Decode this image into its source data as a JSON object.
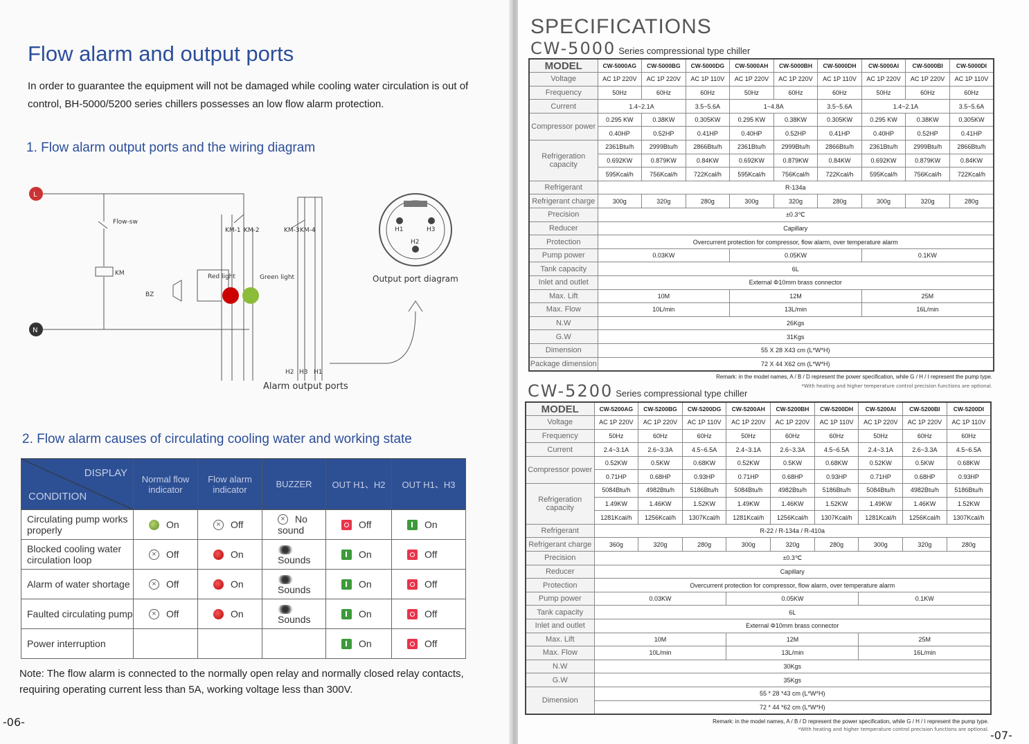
{
  "left": {
    "title": "Flow alarm and output ports",
    "intro": "In order to guarantee the equipment will not be damaged while cooling water circulation is out of control, BH-5000/5200 series chillers possesses an low flow alarm protection.",
    "section1": "1. Flow alarm output ports and the wiring diagram",
    "diagram": {
      "L": "L",
      "N": "N",
      "flow_sw": "Flow-sw",
      "km": "KM",
      "km1": "KM-1",
      "km2": "KM-2",
      "km3": "KM-3",
      "km4": "KM-4",
      "bz": "BZ",
      "red_light": "Red light",
      "green_light": "Green light",
      "h2": "H2",
      "h3": "H3",
      "h1": "H1",
      "alarm_ports": "Alarm output ports",
      "output_diagram": "Output port diagram",
      "conn_h1": "H1",
      "conn_h3": "H3",
      "conn_h2": "H2"
    },
    "section2": "2. Flow alarm causes of circulating cooling water and working state",
    "table": {
      "header": {
        "display": "DISPLAY",
        "condition": "CONDITION",
        "cols": [
          "Normal flow indicator",
          "Flow alarm indicator",
          "BUZZER",
          "OUT H1、H2",
          "OUT H1、H3"
        ]
      },
      "rows": [
        {
          "condition": "Circulating pump works properly",
          "cells": [
            {
              "icon": "green-dot",
              "text": "On"
            },
            {
              "icon": "cross-circle",
              "text": "Off"
            },
            {
              "icon": "cross-circle",
              "text": "No sound"
            },
            {
              "icon": "out-off",
              "text": "Off"
            },
            {
              "icon": "out-on",
              "text": "On"
            }
          ]
        },
        {
          "condition": "Blocked cooling water circulation loop",
          "cells": [
            {
              "icon": "cross-circle",
              "text": "Off"
            },
            {
              "icon": "red-dot",
              "text": "On"
            },
            {
              "icon": "speaker",
              "text": "Sounds"
            },
            {
              "icon": "out-on",
              "text": "On"
            },
            {
              "icon": "out-off",
              "text": "Off"
            }
          ]
        },
        {
          "condition": "Alarm of water shortage",
          "cells": [
            {
              "icon": "cross-circle",
              "text": "Off"
            },
            {
              "icon": "red-dot",
              "text": "On"
            },
            {
              "icon": "speaker",
              "text": "Sounds"
            },
            {
              "icon": "out-on",
              "text": "On"
            },
            {
              "icon": "out-off",
              "text": "Off"
            }
          ]
        },
        {
          "condition": "Faulted circulating pump",
          "cells": [
            {
              "icon": "cross-circle",
              "text": "Off"
            },
            {
              "icon": "red-dot",
              "text": "On"
            },
            {
              "icon": "speaker",
              "text": "Sounds"
            },
            {
              "icon": "out-on",
              "text": "On"
            },
            {
              "icon": "out-off",
              "text": "Off"
            }
          ]
        },
        {
          "condition": "Power interruption",
          "cells": [
            null,
            null,
            null,
            {
              "icon": "out-on",
              "text": "On"
            },
            {
              "icon": "out-off",
              "text": "Off"
            }
          ]
        }
      ]
    },
    "note": "Note: The flow alarm is connected to the normally open relay and normally closed relay contacts, requiring operating current less than 5A, working voltage less than 300V.",
    "page": "-06-"
  },
  "right": {
    "title": "SPECIFICATIONS",
    "page": "-07-",
    "tables": [
      {
        "series_model": "CW-5000",
        "series_text": "Series compressional type chiller",
        "models": [
          "CW-5000AG",
          "CW-5000BG",
          "CW-5000DG",
          "CW-5000AH",
          "CW-5000BH",
          "CW-5000DH",
          "CW-5000AI",
          "CW-5000BI",
          "CW-5000DI"
        ],
        "model_label": "MODEL",
        "rows": [
          {
            "label": "Voltage",
            "cells": [
              "AC 1P 220V",
              "AC 1P 220V",
              "AC 1P 110V",
              "AC 1P 220V",
              "AC 1P 220V",
              "AC 1P 110V",
              "AC 1P 220V",
              "AC 1P 220V",
              "AC 1P 110V"
            ]
          },
          {
            "label": "Frequency",
            "cells": [
              "50Hz",
              "60Hz",
              "60Hz",
              "50Hz",
              "60Hz",
              "60Hz",
              "50Hz",
              "60Hz",
              "60Hz"
            ]
          },
          {
            "label": "Current",
            "cells": [
              [
                "1.4~2.1A",
                2
              ],
              "3.5~5.6A",
              [
                "1~4.8A",
                2
              ],
              "3.5~5.6A",
              [
                "1.4~2.1A",
                2
              ],
              "3.5~5.6A"
            ]
          },
          {
            "label": "Compressor power",
            "rowspan": 2,
            "cells": [
              "0.295 KW",
              "0.38KW",
              "0.305KW",
              "0.295 KW",
              "0.38KW",
              "0.305KW",
              "0.295 KW",
              "0.38KW",
              "0.305KW"
            ]
          },
          {
            "cells": [
              "0.40HP",
              "0.52HP",
              "0.41HP",
              "0.40HP",
              "0.52HP",
              "0.41HP",
              "0.40HP",
              "0.52HP",
              "0.41HP"
            ]
          },
          {
            "label": "Refrigeration capacity",
            "rowspan": 3,
            "cells": [
              "2361Btu/h",
              "2999Btu/h",
              "2866Btu/h",
              "2361Btu/h",
              "2999Btu/h",
              "2866Btu/h",
              "2361Btu/h",
              "2999Btu/h",
              "2866Btu/h"
            ]
          },
          {
            "cells": [
              "0.692KW",
              "0.879KW",
              "0.84KW",
              "0.692KW",
              "0.879KW",
              "0.84KW",
              "0.692KW",
              "0.879KW",
              "0.84KW"
            ]
          },
          {
            "cells": [
              "595Kcal/h",
              "756Kcal/h",
              "722Kcal/h",
              "595Kcal/h",
              "756Kcal/h",
              "722Kcal/h",
              "595Kcal/h",
              "756Kcal/h",
              "722Kcal/h"
            ]
          },
          {
            "label": "Refrigerant",
            "cells": [
              [
                "R-134a",
                9
              ]
            ]
          },
          {
            "label": "Refrigerant charge",
            "cells": [
              "300g",
              "320g",
              "280g",
              "300g",
              "320g",
              "280g",
              "300g",
              "320g",
              "280g"
            ]
          },
          {
            "label": "Precision",
            "cells": [
              [
                "±0.3℃",
                9
              ]
            ]
          },
          {
            "label": "Reducer",
            "cells": [
              [
                "Capillary",
                9
              ]
            ]
          },
          {
            "label": "Protection",
            "cells": [
              [
                "Overcurrent protection for compressor, flow alarm, over temperature alarm",
                9
              ]
            ]
          },
          {
            "label": "Pump power",
            "cells": [
              [
                "0.03KW",
                3
              ],
              [
                "0.05KW",
                3
              ],
              [
                "0.1KW",
                3
              ]
            ]
          },
          {
            "label": "Tank capacity",
            "cells": [
              [
                "6L",
                9
              ]
            ]
          },
          {
            "label": "Inlet and outlet",
            "cells": [
              [
                "External Φ10mm brass connector",
                9
              ]
            ]
          },
          {
            "label": "Max. Lift",
            "cells": [
              [
                "10M",
                3
              ],
              [
                "12M",
                3
              ],
              [
                "25M",
                3
              ]
            ]
          },
          {
            "label": "Max. Flow",
            "cells": [
              [
                "10L/min",
                3
              ],
              [
                "13L/min",
                3
              ],
              [
                "16L/min",
                3
              ]
            ]
          },
          {
            "label": "N.W",
            "cells": [
              [
                "26Kgs",
                9
              ]
            ]
          },
          {
            "label": "G.W",
            "cells": [
              [
                "31Kgs",
                9
              ]
            ]
          },
          {
            "label": "Dimension",
            "cells": [
              [
                "55 X 28 X43 cm (L*W*H)",
                9
              ]
            ]
          },
          {
            "label": "Package dimension",
            "cells": [
              [
                "72 X 44 X62 cm (L*W*H)",
                9
              ]
            ]
          }
        ],
        "remark": "Remark: in the model names, A / B / D represent the power specification, while G / H / I represent the pump type.",
        "remark2": "*With heating and higher temperature control precision functions are optional."
      },
      {
        "series_model": "CW-5200",
        "series_text": "Series compressional type chiller",
        "models": [
          "CW-5200AG",
          "CW-5200BG",
          "CW-5200DG",
          "CW-5200AH",
          "CW-5200BH",
          "CW-5200DH",
          "CW-5200AI",
          "CW-5200BI",
          "CW-5200DI"
        ],
        "model_label": "MODEL",
        "rows": [
          {
            "label": "Voltage",
            "cells": [
              "AC 1P 220V",
              "AC 1P 220V",
              "AC 1P 110V",
              "AC 1P 220V",
              "AC 1P 220V",
              "AC 1P 110V",
              "AC 1P 220V",
              "AC 1P 220V",
              "AC 1P 110V"
            ]
          },
          {
            "label": "Frequency",
            "cells": [
              "50Hz",
              "60Hz",
              "60Hz",
              "50Hz",
              "60Hz",
              "60Hz",
              "50Hz",
              "60Hz",
              "60Hz"
            ]
          },
          {
            "label": "Current",
            "cells": [
              "2.4~3.1A",
              "2.6~3.3A",
              "4.5~6.5A",
              "2.4~3.1A",
              "2.6~3.3A",
              "4.5~6.5A",
              "2.4~3.1A",
              "2.6~3.3A",
              "4.5~6.5A"
            ]
          },
          {
            "label": "Compressor power",
            "rowspan": 2,
            "cells": [
              "0.52KW",
              "0.5KW",
              "0.68KW",
              "0.52KW",
              "0.5KW",
              "0.68KW",
              "0.52KW",
              "0.5KW",
              "0.68KW"
            ]
          },
          {
            "cells": [
              "0.71HP",
              "0.68HP",
              "0.93HP",
              "0.71HP",
              "0.68HP",
              "0.93HP",
              "0.71HP",
              "0.68HP",
              "0.93HP"
            ]
          },
          {
            "label": "Refrigeration capacity",
            "rowspan": 3,
            "cells": [
              "5084Btu/h",
              "4982Btu/h",
              "5186Btu/h",
              "5084Btu/h",
              "4982Btu/h",
              "5186Btu/h",
              "5084Btu/h",
              "4982Btu/h",
              "5186Btu/h"
            ]
          },
          {
            "cells": [
              "1.49KW",
              "1.46KW",
              "1.52KW",
              "1.49KW",
              "1.46KW",
              "1.52KW",
              "1.49KW",
              "1.46KW",
              "1.52KW"
            ]
          },
          {
            "cells": [
              "1281Kcal/h",
              "1256Kcal/h",
              "1307Kcal/h",
              "1281Kcal/h",
              "1256Kcal/h",
              "1307Kcal/h",
              "1281Kcal/h",
              "1256Kcal/h",
              "1307Kcal/h"
            ]
          },
          {
            "label": "Refrigerant",
            "cells": [
              [
                "R-22 / R-134a / R-410a",
                9
              ]
            ]
          },
          {
            "label": "Refrigerant charge",
            "cells": [
              "360g",
              "320g",
              "280g",
              "300g",
              "320g",
              "280g",
              "300g",
              "320g",
              "280g"
            ]
          },
          {
            "label": "Precision",
            "cells": [
              [
                "±0.3℃",
                9
              ]
            ]
          },
          {
            "label": "Reducer",
            "cells": [
              [
                "Capillary",
                9
              ]
            ]
          },
          {
            "label": "Protection",
            "cells": [
              [
                "Overcurrent protection for compressor, flow alarm, over temperature alarm",
                9
              ]
            ]
          },
          {
            "label": "Pump power",
            "cells": [
              [
                "0.03KW",
                3
              ],
              [
                "0.05KW",
                3
              ],
              [
                "0.1KW",
                3
              ]
            ]
          },
          {
            "label": "Tank capacity",
            "cells": [
              [
                "6L",
                9
              ]
            ]
          },
          {
            "label": "Inlet and outlet",
            "cells": [
              [
                "External Φ10mm brass connector",
                9
              ]
            ]
          },
          {
            "label": "Max. Lift",
            "cells": [
              [
                "10M",
                3
              ],
              [
                "12M",
                3
              ],
              [
                "25M",
                3
              ]
            ]
          },
          {
            "label": "Max. Flow",
            "cells": [
              [
                "10L/min",
                3
              ],
              [
                "13L/min",
                3
              ],
              [
                "16L/min",
                3
              ]
            ]
          },
          {
            "label": "N.W",
            "cells": [
              [
                "30Kgs",
                9
              ]
            ]
          },
          {
            "label": "G.W",
            "cells": [
              [
                "35Kgs",
                9
              ]
            ]
          },
          {
            "label": "Dimension",
            "rowspan": 2,
            "cells": [
              [
                "55 * 28 *43 cm (L*W*H)",
                9
              ]
            ]
          },
          {
            "cells": [
              [
                "72 * 44 *62 cm (L*W*H)",
                9
              ]
            ]
          }
        ],
        "remark": "Remark: in the model names, A / B / D represent the power specification, while G / H / I represent the pump type.",
        "remark2": "*With heating and higher temperature control precision functions are optional."
      }
    ]
  }
}
